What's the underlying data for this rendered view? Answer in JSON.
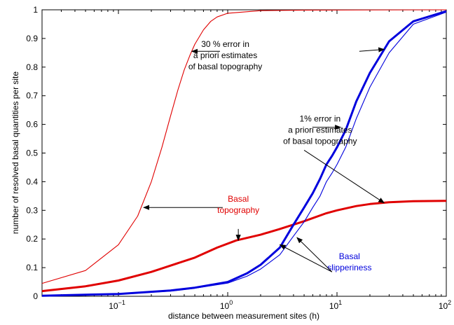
{
  "chart_data": {
    "type": "line",
    "xlabel": "distance between measurement sites (h)",
    "ylabel": "number of resolved basal quantities per site",
    "x_scale": "log",
    "xlim": [
      0.02,
      100
    ],
    "ylim": [
      0,
      1
    ],
    "x_ticks": [
      {
        "value": 0.1,
        "base": "10",
        "exp": "−1"
      },
      {
        "value": 1,
        "base": "10",
        "exp": "0"
      },
      {
        "value": 10,
        "base": "10",
        "exp": "1"
      },
      {
        "value": 100,
        "base": "10",
        "exp": "2"
      }
    ],
    "y_ticks": [
      "0",
      "0.1",
      "0.2",
      "0.3",
      "0.4",
      "0.5",
      "0.6",
      "0.7",
      "0.8",
      "0.9",
      "1"
    ],
    "grid": false,
    "colors": {
      "red": "#e00000",
      "blue": "#0000dd"
    },
    "series": [
      {
        "color": "#e00000",
        "width": "thin",
        "points": [
          [
            0.02,
            0.045
          ],
          [
            0.05,
            0.09
          ],
          [
            0.1,
            0.18
          ],
          [
            0.15,
            0.28
          ],
          [
            0.2,
            0.4
          ],
          [
            0.25,
            0.52
          ],
          [
            0.3,
            0.63
          ],
          [
            0.35,
            0.72
          ],
          [
            0.4,
            0.79
          ],
          [
            0.45,
            0.84
          ],
          [
            0.5,
            0.88
          ],
          [
            0.6,
            0.93
          ],
          [
            0.7,
            0.96
          ],
          [
            0.8,
            0.975
          ],
          [
            1,
            0.988
          ],
          [
            2,
            0.997
          ],
          [
            5,
            0.999
          ],
          [
            100,
            1.0
          ]
        ]
      },
      {
        "color": "#e00000",
        "width": "thick",
        "points": [
          [
            0.02,
            0.018
          ],
          [
            0.05,
            0.035
          ],
          [
            0.1,
            0.055
          ],
          [
            0.2,
            0.085
          ],
          [
            0.5,
            0.135
          ],
          [
            0.8,
            0.17
          ],
          [
            1.2,
            0.195
          ],
          [
            2,
            0.215
          ],
          [
            3,
            0.235
          ],
          [
            5,
            0.262
          ],
          [
            8,
            0.29
          ],
          [
            10,
            0.3
          ],
          [
            15,
            0.315
          ],
          [
            20,
            0.322
          ],
          [
            30,
            0.328
          ],
          [
            50,
            0.332
          ],
          [
            100,
            0.333
          ]
        ]
      },
      {
        "color": "#0000dd",
        "width": "thick",
        "points": [
          [
            0.02,
            0.002
          ],
          [
            0.1,
            0.008
          ],
          [
            0.3,
            0.02
          ],
          [
            0.5,
            0.03
          ],
          [
            1,
            0.05
          ],
          [
            1.5,
            0.08
          ],
          [
            2,
            0.11
          ],
          [
            3,
            0.17
          ],
          [
            4,
            0.25
          ],
          [
            5,
            0.31
          ],
          [
            6,
            0.36
          ],
          [
            7,
            0.41
          ],
          [
            8,
            0.46
          ],
          [
            9,
            0.49
          ],
          [
            10,
            0.52
          ],
          [
            12,
            0.58
          ],
          [
            15,
            0.68
          ],
          [
            20,
            0.78
          ],
          [
            30,
            0.89
          ],
          [
            50,
            0.96
          ],
          [
            100,
            0.995
          ]
        ]
      },
      {
        "color": "#0000dd",
        "width": "thin",
        "points": [
          [
            0.02,
            0.002
          ],
          [
            0.1,
            0.007
          ],
          [
            0.3,
            0.018
          ],
          [
            0.5,
            0.028
          ],
          [
            1,
            0.046
          ],
          [
            1.5,
            0.07
          ],
          [
            2,
            0.095
          ],
          [
            3,
            0.145
          ],
          [
            4,
            0.21
          ],
          [
            5,
            0.26
          ],
          [
            6,
            0.31
          ],
          [
            7,
            0.35
          ],
          [
            8,
            0.4
          ],
          [
            9,
            0.43
          ],
          [
            10,
            0.46
          ],
          [
            12,
            0.52
          ],
          [
            15,
            0.62
          ],
          [
            20,
            0.73
          ],
          [
            30,
            0.85
          ],
          [
            50,
            0.95
          ],
          [
            100,
            0.992
          ]
        ]
      }
    ],
    "annotations": [
      {
        "lines": [
          "30 %  error in",
          "a priori estimates",
          "of basal topography"
        ],
        "color": "black",
        "x": 0.95,
        "y": 0.87,
        "anchor": "middle",
        "arrows": [
          {
            "from": [
              0.85,
              0.855
            ],
            "to": [
              0.47,
              0.855
            ]
          },
          {
            "from": [
              16,
              0.855
            ],
            "to": [
              27,
              0.862
            ]
          }
        ]
      },
      {
        "lines": [
          "1% error in",
          "a priori estimates",
          "of basal topography"
        ],
        "color": "black",
        "x": 7,
        "y": 0.61,
        "anchor": "middle",
        "arrows": [
          {
            "from": [
              6,
              0.59
            ],
            "to": [
              10.8,
              0.59
            ]
          },
          {
            "from": [
              5,
              0.51
            ],
            "to": [
              27,
              0.326
            ]
          }
        ]
      },
      {
        "lines": [
          "",
          "",
          ""
        ],
        "color": "black",
        "x": 0.9,
        "y": 0.31,
        "anchor": "middle",
        "arrows": [
          {
            "from": [
              0.9,
              0.31
            ],
            "to": [
              0.17,
              0.31
            ]
          }
        ]
      },
      {
        "lines": [
          "Basal",
          "topography"
        ],
        "color": "red",
        "x": 1.25,
        "y": 0.33,
        "anchor": "middle",
        "arrows": [
          {
            "from": [
              1.25,
              0.235
            ],
            "to": [
              1.25,
              0.195
            ]
          }
        ]
      },
      {
        "lines": [
          "Basal",
          "slipperiness"
        ],
        "color": "blue",
        "x": 13,
        "y": 0.13,
        "anchor": "middle",
        "arrows": [
          {
            "from": [
              9,
              0.085
            ],
            "to": [
              3.0,
              0.18
            ]
          },
          {
            "from": [
              9,
              0.085
            ],
            "to": [
              4.3,
              0.205
            ]
          }
        ]
      }
    ]
  }
}
